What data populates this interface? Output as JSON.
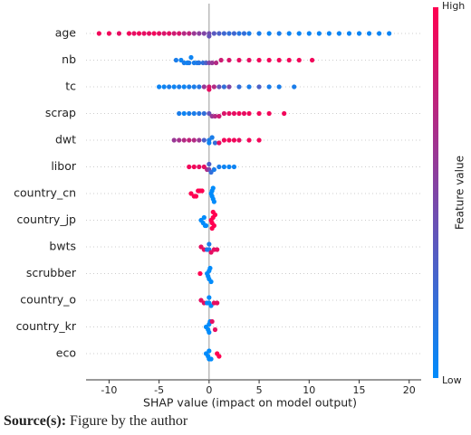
{
  "chart_data": {
    "type": "beeswarm",
    "xlabel": "SHAP value (impact on model output)",
    "xlim": [
      -12.3,
      21.2
    ],
    "xticks": [
      -10,
      -5,
      0,
      5,
      10,
      15,
      20
    ],
    "colorbar": {
      "label": "Feature value",
      "high": "High",
      "low": "Low",
      "low_color": "#008bfb",
      "high_color": "#ff0051"
    },
    "series": [
      {
        "name": "age",
        "values": [
          -11,
          -10,
          -9,
          -8,
          -7.5,
          -7,
          -6.5,
          -6,
          -5.5,
          -5,
          -4.5,
          -4,
          -3.5,
          -3,
          -2.5,
          -2,
          -1.5,
          -1,
          -0.5,
          0,
          0,
          0.5,
          1,
          1.5,
          2,
          2.5,
          3,
          3.5,
          4,
          5,
          6,
          7,
          8,
          9,
          10,
          11,
          12,
          13,
          14,
          15,
          16,
          17,
          18
        ],
        "feature_values": [
          0.95,
          0.95,
          0.9,
          0.95,
          0.9,
          0.95,
          0.9,
          0.9,
          0.95,
          0.9,
          0.85,
          0.9,
          0.8,
          0.85,
          0.7,
          0.75,
          0.6,
          0.55,
          0.5,
          0.45,
          0.4,
          0.35,
          0.3,
          0.25,
          0.2,
          0.25,
          0.15,
          0.2,
          0.1,
          0.1,
          0.05,
          0.1,
          0.05,
          0.05,
          0.05,
          0.05,
          0.05,
          0.05,
          0.05,
          0.05,
          0.05,
          0.05,
          0.05
        ]
      },
      {
        "name": "nb",
        "values": [
          -3.3,
          -2.8,
          -2.5,
          -2.2,
          -2,
          -1.8,
          -1.5,
          -1.2,
          -1,
          -0.6,
          -0.3,
          0,
          0.3,
          0.7,
          1.2,
          2,
          3,
          4,
          5,
          6,
          7,
          8,
          9,
          10.3
        ],
        "feature_values": [
          0.1,
          0.05,
          0.1,
          0.05,
          0.1,
          0.05,
          0.1,
          0.1,
          0.15,
          0.2,
          0.3,
          0.5,
          0.6,
          0.7,
          0.8,
          0.85,
          0.9,
          0.9,
          0.95,
          0.95,
          0.95,
          0.95,
          0.95,
          0.95
        ]
      },
      {
        "name": "tc",
        "values": [
          -5,
          -4.5,
          -4,
          -3.5,
          -3,
          -2.5,
          -2,
          -1.5,
          -1,
          -0.5,
          0,
          0,
          0.5,
          1,
          1.5,
          2,
          3,
          4,
          5,
          6,
          7,
          8.5
        ],
        "feature_values": [
          0.05,
          0.05,
          0.1,
          0.05,
          0.1,
          0.05,
          0.1,
          0.1,
          0.15,
          0.6,
          0.8,
          0.9,
          0.7,
          0.4,
          0.2,
          0.5,
          0.2,
          0.1,
          0.3,
          0.1,
          0.1,
          0.1
        ]
      },
      {
        "name": "scrap",
        "values": [
          -3,
          -2.5,
          -2,
          -1.5,
          -1,
          -0.5,
          0,
          0.3,
          0.6,
          1,
          1.5,
          2,
          2.5,
          3,
          3.5,
          4,
          5,
          6,
          7.5
        ],
        "feature_values": [
          0.1,
          0.05,
          0.1,
          0.1,
          0.15,
          0.2,
          0.4,
          0.6,
          0.7,
          0.8,
          0.85,
          0.9,
          0.9,
          0.95,
          0.9,
          0.95,
          0.95,
          0.95,
          0.95
        ]
      },
      {
        "name": "dwt",
        "values": [
          -3.5,
          -3,
          -2.5,
          -2,
          -1.5,
          -1,
          -0.5,
          0,
          0,
          0.3,
          0.6,
          1,
          1.5,
          2,
          2.5,
          3,
          4,
          5
        ],
        "feature_values": [
          0.6,
          0.65,
          0.7,
          0.75,
          0.7,
          0.6,
          0.3,
          0.1,
          0.05,
          0.1,
          0.2,
          0.9,
          0.95,
          0.95,
          0.95,
          0.9,
          0.95,
          0.95
        ]
      },
      {
        "name": "libor",
        "values": [
          -2,
          -1.5,
          -1,
          -0.5,
          -0.2,
          0,
          0,
          0.2,
          0.5,
          1,
          1.5,
          2,
          2.5
        ],
        "feature_values": [
          0.95,
          0.95,
          0.9,
          0.9,
          0.7,
          0.5,
          0.3,
          0.2,
          0.1,
          0.1,
          0.05,
          0.05,
          0.05
        ]
      },
      {
        "name": "country_cn",
        "values": [
          -1.8,
          -1.5,
          -1.3,
          -1.1,
          -0.9,
          -0.7,
          0.2,
          0.3,
          0.3,
          0.4,
          0.4,
          0.5
        ],
        "feature_values": [
          1,
          1,
          1,
          1,
          1,
          1,
          0,
          0,
          0,
          0,
          0,
          0
        ]
      },
      {
        "name": "country_jp",
        "values": [
          -0.8,
          -0.6,
          -0.5,
          -0.4,
          -0.3,
          0.2,
          0.3,
          0.4,
          0.5,
          0.6,
          0.3,
          0.4
        ],
        "feature_values": [
          0,
          0,
          0,
          0,
          0,
          1,
          1,
          1,
          1,
          1,
          1,
          1
        ]
      },
      {
        "name": "bwts",
        "values": [
          -0.8,
          -0.5,
          -0.2,
          0,
          0,
          0.2,
          0.5,
          0.8
        ],
        "feature_values": [
          0.9,
          0.9,
          0.1,
          0.1,
          0.1,
          0.9,
          0.9,
          0.9
        ]
      },
      {
        "name": "scrubber",
        "values": [
          -0.9,
          -0.2,
          -0.1,
          0,
          0,
          0.1,
          0.2
        ],
        "feature_values": [
          1,
          0,
          0,
          0,
          0,
          0,
          0
        ]
      },
      {
        "name": "country_o",
        "values": [
          -0.8,
          -0.5,
          -0.2,
          0,
          0,
          0.2,
          0.5,
          0.8
        ],
        "feature_values": [
          0.9,
          0.9,
          0,
          0,
          0,
          0,
          0.9,
          0.9
        ]
      },
      {
        "name": "country_kr",
        "values": [
          -0.3,
          -0.1,
          0,
          0,
          0.1,
          0.3,
          0.6
        ],
        "feature_values": [
          0,
          0,
          0,
          0,
          0,
          0.9,
          0.9
        ]
      },
      {
        "name": "eco",
        "values": [
          -0.3,
          -0.1,
          0,
          0,
          0.2,
          0.8,
          1.0
        ],
        "feature_values": [
          0,
          0,
          0,
          0,
          0,
          1,
          1
        ]
      }
    ]
  },
  "caption": {
    "label": "Source(s):",
    "text": "Figure by the author"
  }
}
